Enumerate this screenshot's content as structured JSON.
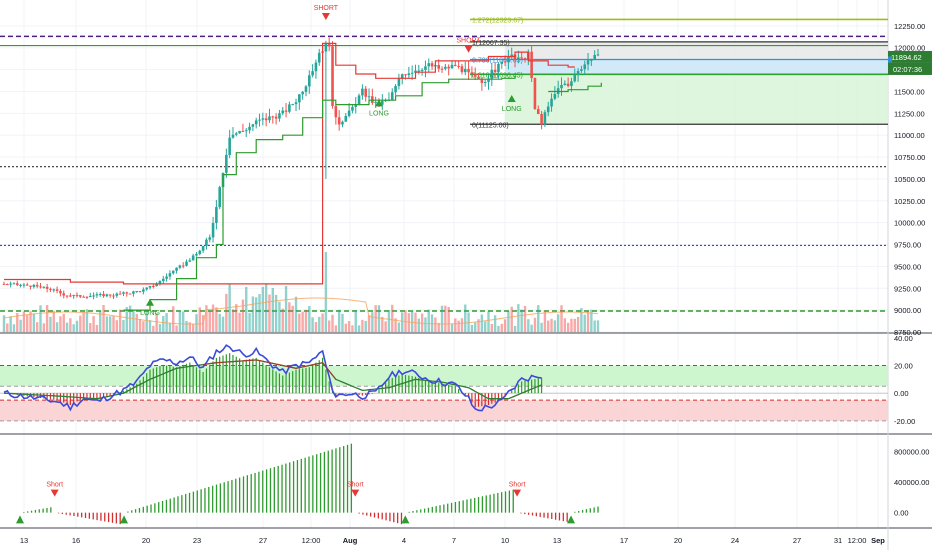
{
  "colors": {
    "up": "#26a69a",
    "down": "#ef5350",
    "stop_long": "#2e9b2e",
    "stop_short": "#e53935",
    "purple_level": "#4b1e86",
    "blue_level": "#3f3fd9",
    "black_level": "#333333",
    "fib_127": "#9bbf1a",
    "fib_1": "#333333",
    "fib_0786": "#2f8fd8",
    "fib_0618": "#2aa52a",
    "fib_0": "#333333",
    "osc_line": "#3b4bd8",
    "osc_signal": "#2e7d32",
    "hist_up": "#2e9b2e",
    "hist_down": "#d32f2f",
    "price_badge": "#2e7d32"
  },
  "chart_data": [
    {
      "type": "candlestick",
      "pane": "price",
      "ylim": [
        8750,
        12500
      ],
      "y_ticks": [
        "12250.00",
        "12000.00",
        "11750.00",
        "11500.00",
        "11250.00",
        "11000.00",
        "10750.00",
        "10500.00",
        "10250.00",
        "10000.00",
        "9750.00",
        "9500.00",
        "9250.00",
        "9000.00",
        "8750.00"
      ],
      "y_tick_values": [
        12250,
        12000,
        11750,
        11500,
        11250,
        11000,
        10750,
        10500,
        10250,
        10000,
        9750,
        9500,
        9250,
        9000,
        8750
      ],
      "current_price": "11894.62",
      "countdown": "02:07:36",
      "anchors": [
        [
          0,
          9300
        ],
        [
          8,
          9280
        ],
        [
          14,
          9240
        ],
        [
          18,
          9180
        ],
        [
          22,
          9160
        ],
        [
          28,
          9170
        ],
        [
          33,
          9175
        ],
        [
          38,
          9200
        ],
        [
          42,
          9230
        ],
        [
          46,
          9300
        ],
        [
          50,
          9420
        ],
        [
          54,
          9520
        ],
        [
          58,
          9640
        ],
        [
          62,
          9820
        ],
        [
          66,
          10600
        ],
        [
          68,
          11000
        ],
        [
          72,
          11050
        ],
        [
          76,
          11150
        ],
        [
          80,
          11200
        ],
        [
          84,
          11250
        ],
        [
          88,
          11400
        ],
        [
          92,
          11650
        ],
        [
          95,
          11950
        ],
        [
          98,
          12050
        ],
        [
          99,
          11300
        ],
        [
          101,
          11150
        ],
        [
          104,
          11250
        ],
        [
          108,
          11500
        ],
        [
          112,
          11350
        ],
        [
          116,
          11400
        ],
        [
          120,
          11700
        ],
        [
          124,
          11750
        ],
        [
          128,
          11800
        ],
        [
          132,
          11750
        ],
        [
          136,
          11800
        ],
        [
          140,
          11700
        ],
        [
          144,
          11600
        ],
        [
          148,
          11750
        ],
        [
          152,
          11900
        ],
        [
          156,
          11850
        ],
        [
          158,
          11950
        ],
        [
          160,
          11300
        ],
        [
          162,
          11150
        ],
        [
          165,
          11400
        ],
        [
          168,
          11600
        ],
        [
          170,
          11550
        ],
        [
          173,
          11750
        ],
        [
          176,
          11850
        ],
        [
          178,
          11920
        ],
        [
          179,
          11894
        ]
      ],
      "candles_count": 180,
      "stop_line_long": [
        [
          36,
          9000
        ],
        [
          44,
          9120
        ],
        [
          52,
          9360
        ],
        [
          58,
          9600
        ],
        [
          64,
          9750
        ],
        [
          66,
          10550
        ],
        [
          70,
          10800
        ],
        [
          76,
          10950
        ],
        [
          84,
          11000
        ],
        [
          90,
          11200
        ],
        [
          96,
          11400
        ],
        [
          100,
          11350
        ],
        [
          110,
          11400
        ],
        [
          118,
          11450
        ],
        [
          126,
          11600
        ],
        [
          134,
          11640
        ],
        [
          150,
          11650
        ],
        [
          154,
          11680
        ]
      ],
      "stop_line_short": [
        [
          0,
          9350
        ],
        [
          20,
          9320
        ],
        [
          36,
          9300
        ],
        [
          96,
          12050
        ],
        [
          100,
          11800
        ],
        [
          106,
          11700
        ],
        [
          112,
          11650
        ],
        [
          124,
          11720
        ],
        [
          130,
          11850
        ],
        [
          146,
          11900
        ],
        [
          154,
          11950
        ],
        [
          158,
          11850
        ],
        [
          164,
          11800
        ],
        [
          170,
          11780
        ],
        [
          172,
          11780
        ]
      ],
      "stop_line_long_2": [
        [
          164,
          11500
        ],
        [
          170,
          11520
        ],
        [
          176,
          11560
        ],
        [
          180,
          11600
        ]
      ],
      "volume": {
        "bars_count": 180,
        "ma_visible": true
      },
      "horizontal_levels": [
        {
          "value": 12130,
          "style": "dashed",
          "color": "purple_level"
        },
        {
          "value": 12025,
          "style": "solid",
          "color": "stop_long"
        },
        {
          "value": 10640,
          "style": "dotted",
          "color": "black_level"
        },
        {
          "value": 9740,
          "style": "dotted",
          "color": "blue_level"
        },
        {
          "value": 8990,
          "style": "dashed",
          "color": "stop_long"
        }
      ],
      "fib_levels": [
        {
          "label": "1.272(12323.67)",
          "value": 12323.67,
          "color": "fib_127"
        },
        {
          "label": "1(12067.35)",
          "value": 12067.35,
          "color": "fib_1"
        },
        {
          "label": "0.786(11865.65)",
          "value": 11865.65,
          "color": "fib_0786"
        },
        {
          "label": "0.618(11696.45)",
          "value": 11696.45,
          "color": "fib_0618"
        },
        {
          "label": "0(11125.00)",
          "value": 11125.0,
          "color": "fib_0"
        }
      ],
      "signals": [
        {
          "label": "SHORT",
          "kind": "short",
          "index": 97,
          "value": 12080
        },
        {
          "label": "SHORT",
          "kind": "short",
          "index": 140,
          "value": 12000
        },
        {
          "label": "LONG",
          "kind": "long",
          "index": 113,
          "value": 11330
        },
        {
          "label": "LONG",
          "kind": "long",
          "index": 153,
          "value": 11380
        },
        {
          "label": "LONG",
          "kind": "long",
          "index": 44,
          "value": 9050
        }
      ]
    },
    {
      "type": "line",
      "pane": "oscillator",
      "ylim": [
        -28,
        42
      ],
      "y_ticks": [
        "40.00",
        "20.00",
        "0.00",
        "-20.00"
      ],
      "y_tick_values": [
        40,
        20,
        0,
        -20
      ],
      "bands": [
        {
          "from": 5,
          "to": 20,
          "color": "#c9f5c9"
        },
        {
          "from": -20,
          "to": -5,
          "color": "#fbd0d0"
        }
      ],
      "band_lines": [
        20,
        5,
        -5,
        -20
      ],
      "series_anchors": [
        [
          0,
          0
        ],
        [
          8,
          -3
        ],
        [
          16,
          -6
        ],
        [
          20,
          -10
        ],
        [
          24,
          -4
        ],
        [
          28,
          -6
        ],
        [
          32,
          -2
        ],
        [
          36,
          2
        ],
        [
          40,
          8
        ],
        [
          44,
          20
        ],
        [
          48,
          24
        ],
        [
          52,
          22
        ],
        [
          56,
          26
        ],
        [
          60,
          18
        ],
        [
          64,
          30
        ],
        [
          68,
          34
        ],
        [
          72,
          28
        ],
        [
          76,
          30
        ],
        [
          80,
          22
        ],
        [
          84,
          15
        ],
        [
          88,
          20
        ],
        [
          92,
          22
        ],
        [
          96,
          30
        ],
        [
          98,
          10
        ],
        [
          100,
          -2
        ],
        [
          104,
          0
        ],
        [
          108,
          -2
        ],
        [
          112,
          0
        ],
        [
          116,
          12
        ],
        [
          120,
          16
        ],
        [
          124,
          14
        ],
        [
          128,
          10
        ],
        [
          132,
          8
        ],
        [
          136,
          6
        ],
        [
          140,
          -4
        ],
        [
          142,
          -12
        ],
        [
          146,
          -10
        ],
        [
          150,
          -6
        ],
        [
          152,
          0
        ],
        [
          156,
          10
        ],
        [
          160,
          12
        ],
        [
          162,
          13
        ]
      ],
      "signal_anchors": [
        [
          0,
          0
        ],
        [
          16,
          -2
        ],
        [
          28,
          -4
        ],
        [
          36,
          0
        ],
        [
          44,
          10
        ],
        [
          52,
          18
        ],
        [
          64,
          22
        ],
        [
          76,
          24
        ],
        [
          88,
          18
        ],
        [
          96,
          22
        ],
        [
          100,
          10
        ],
        [
          108,
          2
        ],
        [
          116,
          4
        ],
        [
          124,
          10
        ],
        [
          132,
          8
        ],
        [
          140,
          4
        ],
        [
          146,
          -4
        ],
        [
          152,
          -4
        ],
        [
          156,
          0
        ],
        [
          162,
          6
        ]
      ]
    },
    {
      "type": "bar",
      "pane": "histogram",
      "ylim": [
        -200000,
        1000000
      ],
      "y_ticks": [
        "800000.00",
        "400000.00",
        "0.00"
      ],
      "y_tick_values": [
        800000,
        400000,
        0
      ],
      "segments": [
        {
          "start": 0,
          "end": 8,
          "kind": "long",
          "peak": 70000
        },
        {
          "start": 9,
          "end": 26,
          "kind": "short",
          "peak": 150000
        },
        {
          "start": 27,
          "end": 86,
          "kind": "long",
          "peak": 900000
        },
        {
          "start": 87,
          "end": 99,
          "kind": "short",
          "peak": 150000
        },
        {
          "start": 100,
          "end": 128,
          "kind": "long",
          "peak": 300000
        },
        {
          "start": 129,
          "end": 142,
          "kind": "short",
          "peak": 120000
        },
        {
          "start": 143,
          "end": 150,
          "kind": "long",
          "peak": 80000
        }
      ],
      "signals": [
        {
          "label": "Short",
          "kind": "short",
          "index": 9
        },
        {
          "label": "Short",
          "kind": "short",
          "index": 87
        },
        {
          "label": "Short",
          "kind": "short",
          "index": 129
        },
        {
          "kind": "long",
          "index": 0,
          "label": ""
        },
        {
          "kind": "long",
          "index": 27,
          "label": ""
        },
        {
          "kind": "long",
          "index": 100,
          "label": ""
        },
        {
          "kind": "long",
          "index": 143,
          "label": ""
        }
      ]
    }
  ],
  "x_axis": {
    "labels": [
      "13",
      "16",
      "20",
      "23",
      "27",
      "12:00",
      "Aug",
      "4",
      "7",
      "10",
      "13",
      "17",
      "20",
      "24",
      "27",
      "31",
      "12:00",
      "Sep"
    ],
    "bold": [
      "Aug",
      "Sep"
    ]
  }
}
